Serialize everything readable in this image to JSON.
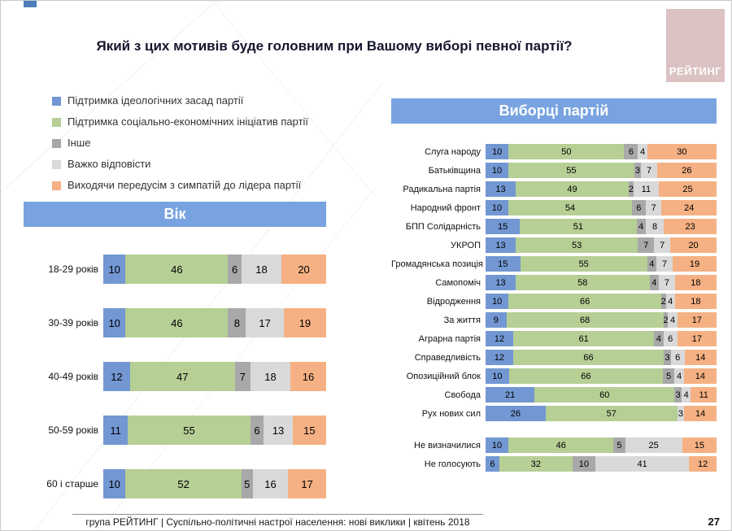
{
  "title": "Який з цих мотивів буде головним при Вашому виборі певної партії?",
  "logo": {
    "text": "РЕЙТИНГ"
  },
  "legend": {
    "items": [
      {
        "key": "ideology",
        "label": "Підтримка ідеологічних засад партії"
      },
      {
        "key": "social",
        "label": "Підтримка соціально-економічних ініціатив партії"
      },
      {
        "key": "other",
        "label": "Інше"
      },
      {
        "key": "hard",
        "label": "Важко відповісти"
      },
      {
        "key": "leader",
        "label": "Виходячи передусім з симпатій до лідера партії"
      }
    ]
  },
  "colors": {
    "ideology": "#7297d3",
    "social": "#b6cf95",
    "other": "#a8a8a8",
    "hard": "#d9d9d9",
    "leader": "#f5b183",
    "header_bg": "#78a3e0",
    "logo_bg": "#dcc2c2",
    "corner_accent": "#4d7dbb"
  },
  "chart_data": [
    {
      "type": "bar",
      "orientation": "horizontal",
      "stacked": true,
      "title": "Вік",
      "series_labels": [
        "Підтримка ідеологічних засад партії",
        "Підтримка соціально-економічних ініціатив партії",
        "Інше",
        "Важко відповісти",
        "Виходячи передусім з симпатій до лідера партії"
      ],
      "categories": [
        "18-29 років",
        "30-39 років",
        "40-49 років",
        "50-59 років",
        "60 і старше"
      ],
      "rows": [
        [
          10,
          46,
          6,
          18,
          20
        ],
        [
          10,
          46,
          8,
          17,
          19
        ],
        [
          12,
          47,
          7,
          18,
          16
        ],
        [
          11,
          55,
          6,
          13,
          15
        ],
        [
          10,
          52,
          5,
          16,
          17
        ]
      ],
      "xlim": [
        0,
        100
      ],
      "legend_position": "above-left"
    },
    {
      "type": "bar",
      "orientation": "horizontal",
      "stacked": true,
      "title": "Виборці партій",
      "series_labels": [
        "Підтримка ідеологічних засад партії",
        "Підтримка соціально-економічних ініціатив партії",
        "Інше",
        "Важко відповісти",
        "Виходячи передусім з симпатій до лідера партії"
      ],
      "categories": [
        "Слуга народу",
        "Батьківщина",
        "Радикальна партія",
        "Народний фронт",
        "БПП Солідарність",
        "УКРОП",
        "Громадянська позиція",
        "Самопоміч",
        "Відродження",
        "За життя",
        "Аграрна партія",
        "Справедливість",
        "Опозиційний блок",
        "Свобода",
        "Рух нових сил"
      ],
      "rows": [
        [
          10,
          50,
          6,
          4,
          30
        ],
        [
          10,
          55,
          3,
          7,
          26
        ],
        [
          13,
          49,
          2,
          11,
          25
        ],
        [
          10,
          54,
          6,
          7,
          24
        ],
        [
          15,
          51,
          4,
          8,
          23
        ],
        [
          13,
          53,
          7,
          7,
          20
        ],
        [
          15,
          55,
          4,
          7,
          19
        ],
        [
          13,
          58,
          4,
          7,
          18
        ],
        [
          10,
          66,
          2,
          4,
          18
        ],
        [
          9,
          68,
          2,
          4,
          17
        ],
        [
          12,
          61,
          4,
          6,
          17
        ],
        [
          12,
          66,
          3,
          6,
          14
        ],
        [
          10,
          66,
          5,
          4,
          14
        ],
        [
          21,
          60,
          3,
          4,
          11
        ],
        [
          26,
          57,
          0,
          3,
          14
        ]
      ],
      "extra_categories": [
        "Не визначилися",
        "Не голосують"
      ],
      "extra_rows": [
        [
          10,
          46,
          5,
          25,
          15
        ],
        [
          6,
          32,
          10,
          41,
          12
        ]
      ],
      "xlim": [
        0,
        100
      ]
    }
  ],
  "footer": {
    "text": "група РЕЙТИНГ  |  Суспільно-політичні настрої населення: нові виклики  |  квітень 2018",
    "page": "27"
  }
}
